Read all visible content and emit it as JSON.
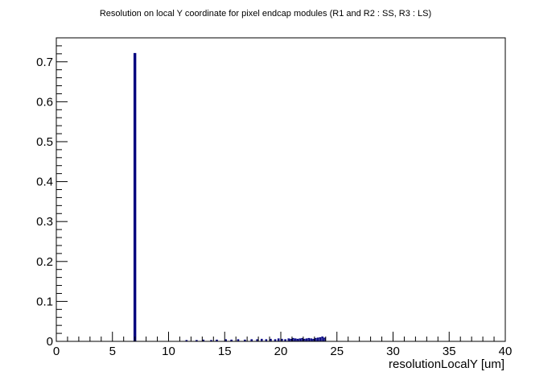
{
  "chart_data": {
    "type": "bar",
    "title": "Resolution on local Y coordinate for pixel endcap modules (R1 and R2 : SS, R3 : LS)",
    "xlabel": "resolutionLocalY [um]",
    "ylabel": "",
    "xlim": [
      0,
      40
    ],
    "ylim": [
      0,
      0.76
    ],
    "x_ticks": [
      "0",
      "5",
      "10",
      "15",
      "20",
      "25",
      "30",
      "35",
      "40"
    ],
    "y_ticks": [
      "0",
      "0.1",
      "0.2",
      "0.3",
      "0.4",
      "0.5",
      "0.6",
      "0.7"
    ],
    "bin_width": 0.1,
    "line_color": "#00007f",
    "grid": false,
    "series": [
      {
        "bin_centers": [
          7.0,
          11.6,
          12.5,
          13.1,
          13.8,
          14.3,
          15.1,
          15.6,
          16.2,
          16.8,
          17.4,
          17.9,
          18.3,
          18.7,
          19.1,
          19.5,
          19.8,
          20.1,
          20.4,
          20.7,
          20.9,
          21.1,
          21.3,
          21.5,
          21.7,
          21.9,
          22.1,
          22.3,
          22.5,
          22.7,
          22.9,
          23.1,
          23.3,
          23.5,
          23.7,
          23.9
        ],
        "values": [
          0.72,
          0.002,
          0.002,
          0.003,
          0.002,
          0.003,
          0.004,
          0.003,
          0.004,
          0.003,
          0.004,
          0.004,
          0.005,
          0.004,
          0.005,
          0.004,
          0.006,
          0.005,
          0.004,
          0.006,
          0.005,
          0.007,
          0.006,
          0.005,
          0.006,
          0.007,
          0.005,
          0.006,
          0.007,
          0.006,
          0.005,
          0.007,
          0.008,
          0.009,
          0.011,
          0.008
        ]
      }
    ]
  }
}
